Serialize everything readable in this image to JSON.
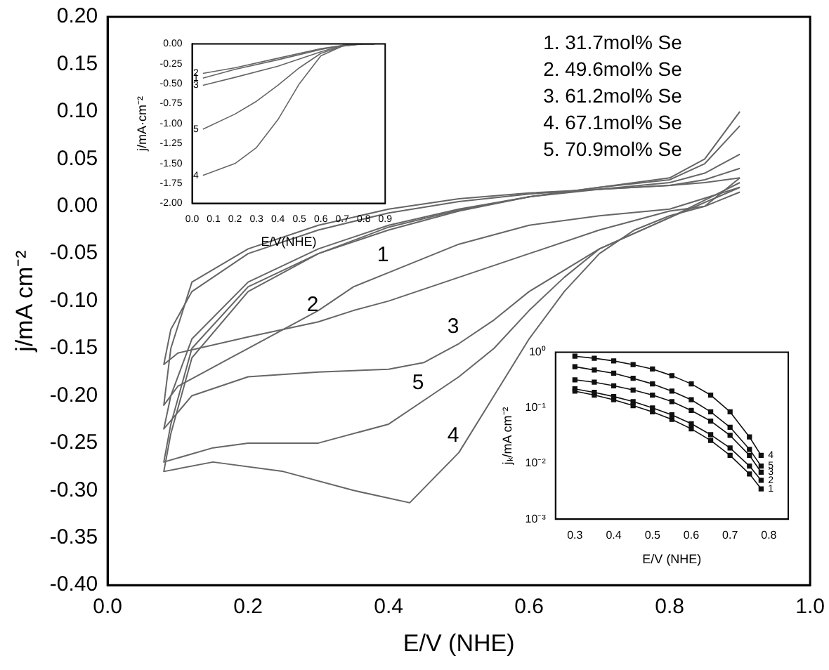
{
  "chart_data": [
    {
      "type": "line",
      "xlabel": "E/V (NHE)",
      "ylabel": "j/mA cm⁻²",
      "xlim": [
        0,
        1
      ],
      "ylim": [
        -0.4,
        0.2
      ],
      "xticks": [
        {
          "value": 0,
          "label": "0.0"
        },
        {
          "value": 0.2,
          "label": "0.2"
        },
        {
          "value": 0.4,
          "label": "0.4"
        },
        {
          "value": 0.6,
          "label": "0.6"
        },
        {
          "value": 0.8,
          "label": "0.8"
        },
        {
          "value": 1,
          "label": "1.0"
        }
      ],
      "yticks": [
        {
          "value": -0.4,
          "label": "-0.40"
        },
        {
          "value": -0.35,
          "label": "-0.35"
        },
        {
          "value": -0.3,
          "label": "-0.30"
        },
        {
          "value": -0.25,
          "label": "-0.25"
        },
        {
          "value": -0.2,
          "label": "-0.20"
        },
        {
          "value": -0.15,
          "label": "-0.15"
        },
        {
          "value": -0.1,
          "label": "-0.10"
        },
        {
          "value": -0.05,
          "label": "-0.05"
        },
        {
          "value": 0,
          "label": "0.00"
        },
        {
          "value": 0.05,
          "label": "0.05"
        },
        {
          "value": 0.1,
          "label": "0.10"
        },
        {
          "value": 0.15,
          "label": "0.15"
        },
        {
          "value": 0.2,
          "label": "0.20"
        }
      ],
      "series": [
        {
          "color": "#666666",
          "x": [
            0.9,
            0.8,
            0.7,
            0.6,
            0.5,
            0.4,
            0.35,
            0.3,
            0.2,
            0.1,
            0.08,
            0.09,
            0.12,
            0.2,
            0.3,
            0.4,
            0.5,
            0.6,
            0.7,
            0.8,
            0.85,
            0.9
          ],
          "values": [
            0.02,
            -0.003,
            -0.01,
            -0.02,
            -0.04,
            -0.07,
            -0.085,
            -0.11,
            -0.15,
            -0.19,
            -0.21,
            -0.15,
            -0.08,
            -0.045,
            -0.02,
            -0.003,
            0.008,
            0.014,
            0.018,
            0.022,
            0.025,
            0.03
          ]
        },
        {
          "color": "#666666",
          "x": [
            0.9,
            0.85,
            0.8,
            0.7,
            0.6,
            0.5,
            0.4,
            0.35,
            0.3,
            0.2,
            0.1,
            0.08,
            0.09,
            0.12,
            0.2,
            0.3,
            0.4,
            0.5,
            0.6,
            0.7,
            0.8,
            0.85,
            0.9
          ],
          "values": [
            0.015,
            0,
            -0.005,
            -0.025,
            -0.05,
            -0.075,
            -0.1,
            -0.11,
            -0.122,
            -0.138,
            -0.155,
            -0.167,
            -0.13,
            -0.09,
            -0.05,
            -0.025,
            -0.007,
            0.005,
            0.013,
            0.018,
            0.022,
            0.028,
            0.04
          ]
        },
        {
          "color": "#666666",
          "x": [
            0.9,
            0.8,
            0.7,
            0.6,
            0.55,
            0.5,
            0.45,
            0.4,
            0.3,
            0.2,
            0.12,
            0.08,
            0.09,
            0.12,
            0.2,
            0.3,
            0.4,
            0.5,
            0.6,
            0.7,
            0.8,
            0.85,
            0.9
          ],
          "values": [
            0.025,
            -0.012,
            -0.045,
            -0.09,
            -0.12,
            -0.145,
            -0.165,
            -0.172,
            -0.175,
            -0.18,
            -0.2,
            -0.235,
            -0.2,
            -0.14,
            -0.08,
            -0.045,
            -0.02,
            -0.003,
            0.01,
            0.018,
            0.025,
            0.035,
            0.055
          ]
        },
        {
          "color": "#666666",
          "x": [
            0.9,
            0.85,
            0.8,
            0.75,
            0.7,
            0.65,
            0.6,
            0.55,
            0.5,
            0.43,
            0.35,
            0.25,
            0.15,
            0.08,
            0.09,
            0.12,
            0.2,
            0.3,
            0.4,
            0.5,
            0.6,
            0.7,
            0.8,
            0.85,
            0.9
          ],
          "values": [
            0.03,
            0,
            -0.01,
            -0.025,
            -0.05,
            -0.09,
            -0.14,
            -0.2,
            -0.26,
            -0.313,
            -0.3,
            -0.28,
            -0.27,
            -0.28,
            -0.24,
            -0.16,
            -0.09,
            -0.05,
            -0.025,
            -0.005,
            0.01,
            0.02,
            0.03,
            0.05,
            0.1
          ]
        },
        {
          "color": "#666666",
          "x": [
            0.9,
            0.8,
            0.7,
            0.65,
            0.6,
            0.55,
            0.5,
            0.45,
            0.4,
            0.3,
            0.2,
            0.15,
            0.08,
            0.09,
            0.12,
            0.2,
            0.3,
            0.4,
            0.5,
            0.6,
            0.7,
            0.8,
            0.85,
            0.9
          ],
          "values": [
            0.02,
            -0.012,
            -0.045,
            -0.075,
            -0.11,
            -0.15,
            -0.18,
            -0.205,
            -0.23,
            -0.25,
            -0.25,
            -0.255,
            -0.27,
            -0.23,
            -0.15,
            -0.085,
            -0.05,
            -0.022,
            -0.004,
            0.01,
            0.02,
            0.028,
            0.045,
            0.085
          ]
        }
      ],
      "annotations": [
        "1. 31.7mol% Se",
        "2. 49.6mol% Se",
        "3. 61.2mol% Se",
        "4. 67.1mol% Se",
        "5. 70.9mol% Se",
        {
          "text": "1",
          "x": 0.4,
          "y": -0.07
        },
        {
          "text": "2",
          "x": 0.3,
          "y": -0.122
        },
        {
          "text": "3",
          "x": 0.5,
          "y": -0.145
        },
        {
          "text": "5",
          "x": 0.45,
          "y": -0.205
        },
        {
          "text": "4",
          "x": 0.5,
          "y": -0.26
        }
      ]
    },
    {
      "type": "line",
      "xlabel": "E/V(NHE)",
      "ylabel": "j/mA·cm⁻²",
      "xlim": [
        0,
        0.9
      ],
      "ylim": [
        -2,
        0
      ],
      "xticks": [
        {
          "value": 0,
          "label": "0.0"
        },
        0.1,
        0.2,
        0.3,
        0.4,
        0.5,
        0.6,
        0.7,
        0.8,
        0.9
      ],
      "yticks": [
        {
          "value": -2,
          "label": "-2.00"
        },
        {
          "value": -1.75,
          "label": "-1.75"
        },
        {
          "value": -1.5,
          "label": "-1.50"
        },
        {
          "value": -1.25,
          "label": "-1.25"
        },
        {
          "value": -1,
          "label": "-1.00"
        },
        {
          "value": -0.75,
          "label": "-0.75"
        },
        {
          "value": -0.5,
          "label": "-0.50"
        },
        {
          "value": -0.25,
          "label": "-0.25"
        },
        {
          "value": 0,
          "label": "0.00"
        }
      ],
      "series": [
        {
          "color": "#666666",
          "x": [
            0.05,
            0.2,
            0.4,
            0.6,
            0.7,
            0.8,
            0.85
          ],
          "values": [
            -0.37,
            -0.3,
            -0.18,
            -0.06,
            -0.02,
            0,
            0
          ]
        },
        {
          "color": "#666666",
          "x": [
            0.05,
            0.2,
            0.4,
            0.6,
            0.7,
            0.8,
            0.85
          ],
          "values": [
            -0.43,
            -0.32,
            -0.2,
            -0.07,
            -0.02,
            0,
            0
          ]
        },
        {
          "color": "#666666",
          "x": [
            0.05,
            0.2,
            0.4,
            0.6,
            0.7,
            0.8,
            0.85
          ],
          "values": [
            -0.52,
            -0.42,
            -0.28,
            -0.1,
            -0.02,
            0,
            0
          ]
        },
        {
          "color": "#666666",
          "x": [
            0.05,
            0.2,
            0.3,
            0.4,
            0.5,
            0.6,
            0.7,
            0.8,
            0.85
          ],
          "values": [
            -1.07,
            -0.88,
            -0.72,
            -0.52,
            -0.3,
            -0.12,
            -0.03,
            0,
            0
          ]
        },
        {
          "color": "#666666",
          "x": [
            0.05,
            0.2,
            0.3,
            0.4,
            0.5,
            0.6,
            0.7,
            0.8,
            0.85
          ],
          "values": [
            -1.65,
            -1.5,
            -1.3,
            -0.95,
            -0.5,
            -0.15,
            -0.03,
            0,
            0
          ]
        }
      ],
      "annotations": [
        {
          "text": "2",
          "x": 0.05,
          "y": -0.37
        },
        {
          "text": "1",
          "x": 0.05,
          "y": -0.43
        },
        {
          "text": "3",
          "x": 0.05,
          "y": -0.52
        },
        {
          "text": "5",
          "x": 0.05,
          "y": -1.07
        },
        {
          "text": "4",
          "x": 0.05,
          "y": -1.65
        }
      ]
    },
    {
      "type": "line",
      "marker": "square",
      "log": true,
      "xlabel": "E/V (NHE)",
      "ylabel": "jₖ/mA cm⁻²",
      "xlim": [
        0.25,
        0.85
      ],
      "ylim": [
        0.001,
        1
      ],
      "xticks": [
        0.3,
        0.4,
        0.5,
        0.6,
        0.7,
        0.8
      ],
      "yticks": [
        {
          "value": 0.001,
          "label": "10⁻³"
        },
        {
          "value": 0.01,
          "label": "10⁻²"
        },
        {
          "value": 0.1,
          "label": "10⁻¹"
        },
        {
          "value": 1,
          "label": "10⁰"
        }
      ],
      "series": [
        {
          "color": "#111111",
          "x": [
            0.3,
            0.35,
            0.4,
            0.45,
            0.5,
            0.55,
            0.6,
            0.65,
            0.7,
            0.75,
            0.78
          ],
          "values": [
            0.2,
            0.17,
            0.14,
            0.11,
            0.085,
            0.062,
            0.042,
            0.026,
            0.014,
            0.0065,
            0.0035
          ]
        },
        {
          "color": "#111111",
          "x": [
            0.3,
            0.35,
            0.4,
            0.45,
            0.5,
            0.55,
            0.6,
            0.65,
            0.7,
            0.75,
            0.78
          ],
          "values": [
            0.22,
            0.19,
            0.16,
            0.13,
            0.1,
            0.075,
            0.052,
            0.033,
            0.019,
            0.009,
            0.005
          ]
        },
        {
          "color": "#111111",
          "x": [
            0.3,
            0.35,
            0.4,
            0.45,
            0.5,
            0.55,
            0.6,
            0.65,
            0.7,
            0.75,
            0.78
          ],
          "values": [
            0.32,
            0.29,
            0.25,
            0.21,
            0.17,
            0.13,
            0.09,
            0.058,
            0.032,
            0.014,
            0.007
          ]
        },
        {
          "color": "#111111",
          "x": [
            0.3,
            0.35,
            0.4,
            0.45,
            0.5,
            0.55,
            0.6,
            0.65,
            0.7,
            0.75,
            0.78
          ],
          "values": [
            0.85,
            0.78,
            0.7,
            0.6,
            0.5,
            0.38,
            0.27,
            0.17,
            0.085,
            0.03,
            0.014
          ]
        },
        {
          "color": "#111111",
          "x": [
            0.3,
            0.35,
            0.4,
            0.45,
            0.5,
            0.55,
            0.6,
            0.65,
            0.7,
            0.75,
            0.78
          ],
          "values": [
            0.55,
            0.48,
            0.42,
            0.34,
            0.27,
            0.2,
            0.14,
            0.085,
            0.045,
            0.018,
            0.009
          ]
        }
      ],
      "annotations": [
        {
          "text": "1",
          "x": 0.78,
          "y": 0.0035
        },
        {
          "text": "2",
          "x": 0.78,
          "y": 0.005
        },
        {
          "text": "3",
          "x": 0.78,
          "y": 0.007
        },
        {
          "text": "5",
          "x": 0.78,
          "y": 0.009
        },
        {
          "text": "4",
          "x": 0.78,
          "y": 0.014
        }
      ]
    }
  ]
}
